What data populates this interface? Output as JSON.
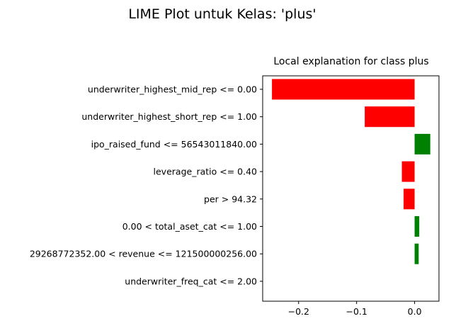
{
  "figure": {
    "suptitle": "LIME Plot untuk Kelas: 'plus'"
  },
  "chart_data": {
    "type": "bar",
    "orientation": "horizontal",
    "title": "Local explanation for class plus",
    "xlabel": "",
    "ylabel": "",
    "categories": [
      "underwriter_highest_mid_rep <= 0.00",
      "underwriter_highest_short_rep <= 1.00",
      "ipo_raised_fund <= 56543011840.00",
      "leverage_ratio <= 0.40",
      "per > 94.32",
      "0.00 < total_aset_cat <= 1.00",
      "29268772352.00 < revenue <= 121500000256.00",
      "underwriter_freq_cat <= 2.00"
    ],
    "values": [
      -0.246,
      -0.086,
      0.027,
      -0.022,
      -0.019,
      0.008,
      0.007,
      0.0
    ],
    "xlim": [
      -0.262,
      0.042
    ],
    "xticks": [
      -0.2,
      -0.1,
      0.0
    ],
    "xtick_labels": [
      "−0.2",
      "−0.1",
      "0.0"
    ],
    "grid": false,
    "colors": {
      "positive": "#008000",
      "negative": "#ff0000"
    }
  }
}
